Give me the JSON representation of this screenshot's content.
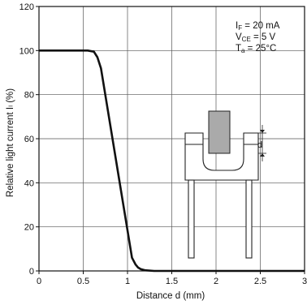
{
  "chart_data": {
    "type": "line",
    "title": "",
    "xlabel": "Distance d (mm)",
    "ylabel": "Relative light current Iₗ (%)",
    "xlim": [
      0,
      3
    ],
    "ylim": [
      0,
      120
    ],
    "x_ticks": [
      0,
      0.5,
      1,
      1.5,
      2,
      2.5,
      3
    ],
    "x_tick_labels": [
      "0",
      "0.5",
      "1",
      "1.5",
      "2",
      "2.5",
      "3"
    ],
    "y_ticks": [
      0,
      20,
      40,
      60,
      80,
      100,
      120
    ],
    "y_tick_labels": [
      "0",
      "20",
      "40",
      "60",
      "80",
      "100",
      "120"
    ],
    "grid": true,
    "series": [
      {
        "x": [
          0,
          0.55,
          0.62,
          0.66,
          0.7,
          1.05,
          1.09,
          1.12,
          1.15,
          1.2,
          1.3,
          3.0
        ],
        "y": [
          100,
          100,
          99.5,
          97,
          92,
          6,
          3,
          1.5,
          0.8,
          0.3,
          0,
          0
        ]
      }
    ],
    "conditions": [
      {
        "main": "I",
        "sub": "F",
        "rest": " = 20 mA"
      },
      {
        "main": "V",
        "sub": "CE",
        "rest": " = 5 V"
      },
      {
        "main": "T",
        "sub": "a",
        "rest": " = 25°C"
      }
    ],
    "inset": {
      "dimension_label": "d"
    },
    "colors": {
      "line": "#111111",
      "grid": "#555555",
      "shield": "#aaaaaa"
    }
  }
}
